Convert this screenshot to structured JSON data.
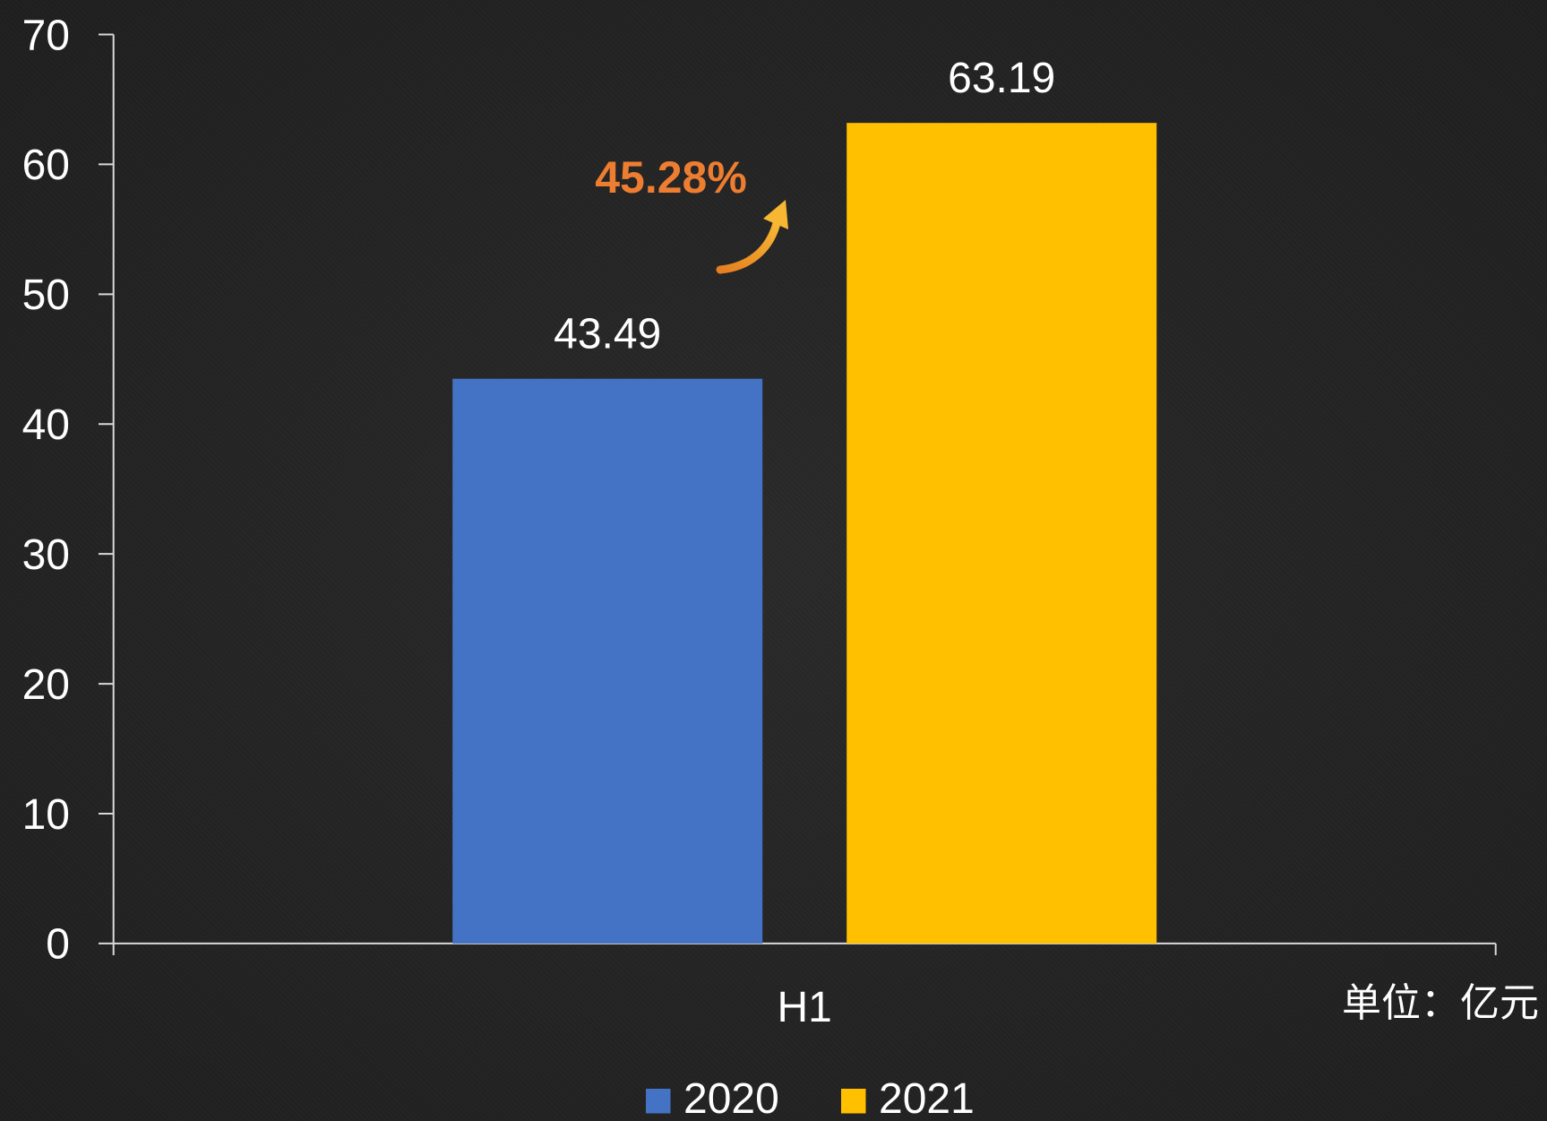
{
  "chart_data": {
    "type": "bar",
    "categories": [
      "H1"
    ],
    "series": [
      {
        "name": "2020",
        "values": [
          43.49
        ],
        "color": "#4472C4"
      },
      {
        "name": "2021",
        "values": [
          63.19
        ],
        "color": "#FFC000"
      }
    ],
    "ylim": [
      0,
      70
    ],
    "yticks": [
      0,
      10,
      20,
      30,
      40,
      50,
      60,
      70
    ],
    "unit_label": "单位：亿元",
    "annotations": [
      {
        "text": "45.28%",
        "color": "#ED7D31",
        "arrow": "up-right-arrow-icon"
      }
    ],
    "data_labels": true,
    "grid": false,
    "legend": "bottom"
  },
  "colors": {
    "background": "#222222",
    "axis": "#D9D9D9",
    "text": "#FFFFFF",
    "arrow": "#F0A020"
  }
}
